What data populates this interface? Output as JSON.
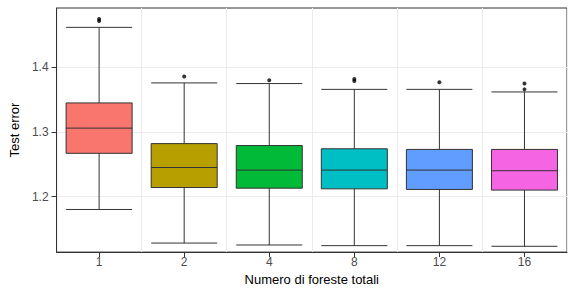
{
  "chart_data": {
    "type": "boxplot",
    "x_label": "Numero di foreste totali",
    "y_label": "Test error",
    "categories": [
      "1",
      "2",
      "4",
      "8",
      "12",
      "16"
    ],
    "values": [
      [
        1.18,
        1.267,
        1.306,
        1.345,
        1.462
      ],
      [
        1.128,
        1.214,
        1.245,
        1.282,
        1.376
      ],
      [
        1.125,
        1.213,
        1.241,
        1.279,
        1.375
      ],
      [
        1.124,
        1.212,
        1.241,
        1.274,
        1.366
      ],
      [
        1.124,
        1.211,
        1.241,
        1.273,
        1.366
      ],
      [
        1.123,
        1.21,
        1.24,
        1.273,
        1.362
      ]
    ],
    "outliers": [
      [
        1.475,
        1.472
      ],
      [
        1.386
      ],
      [
        1.38
      ],
      [
        1.382,
        1.379
      ],
      [
        1.377
      ],
      [
        1.375,
        1.366
      ]
    ],
    "colors": [
      "#F8766D",
      "#B79F00",
      "#00BA38",
      "#00BFC4",
      "#619CFF",
      "#F564E3"
    ],
    "ylim": [
      1.114,
      1.492
    ],
    "yticks": [
      1.2,
      1.3,
      1.4
    ],
    "grid": true
  }
}
